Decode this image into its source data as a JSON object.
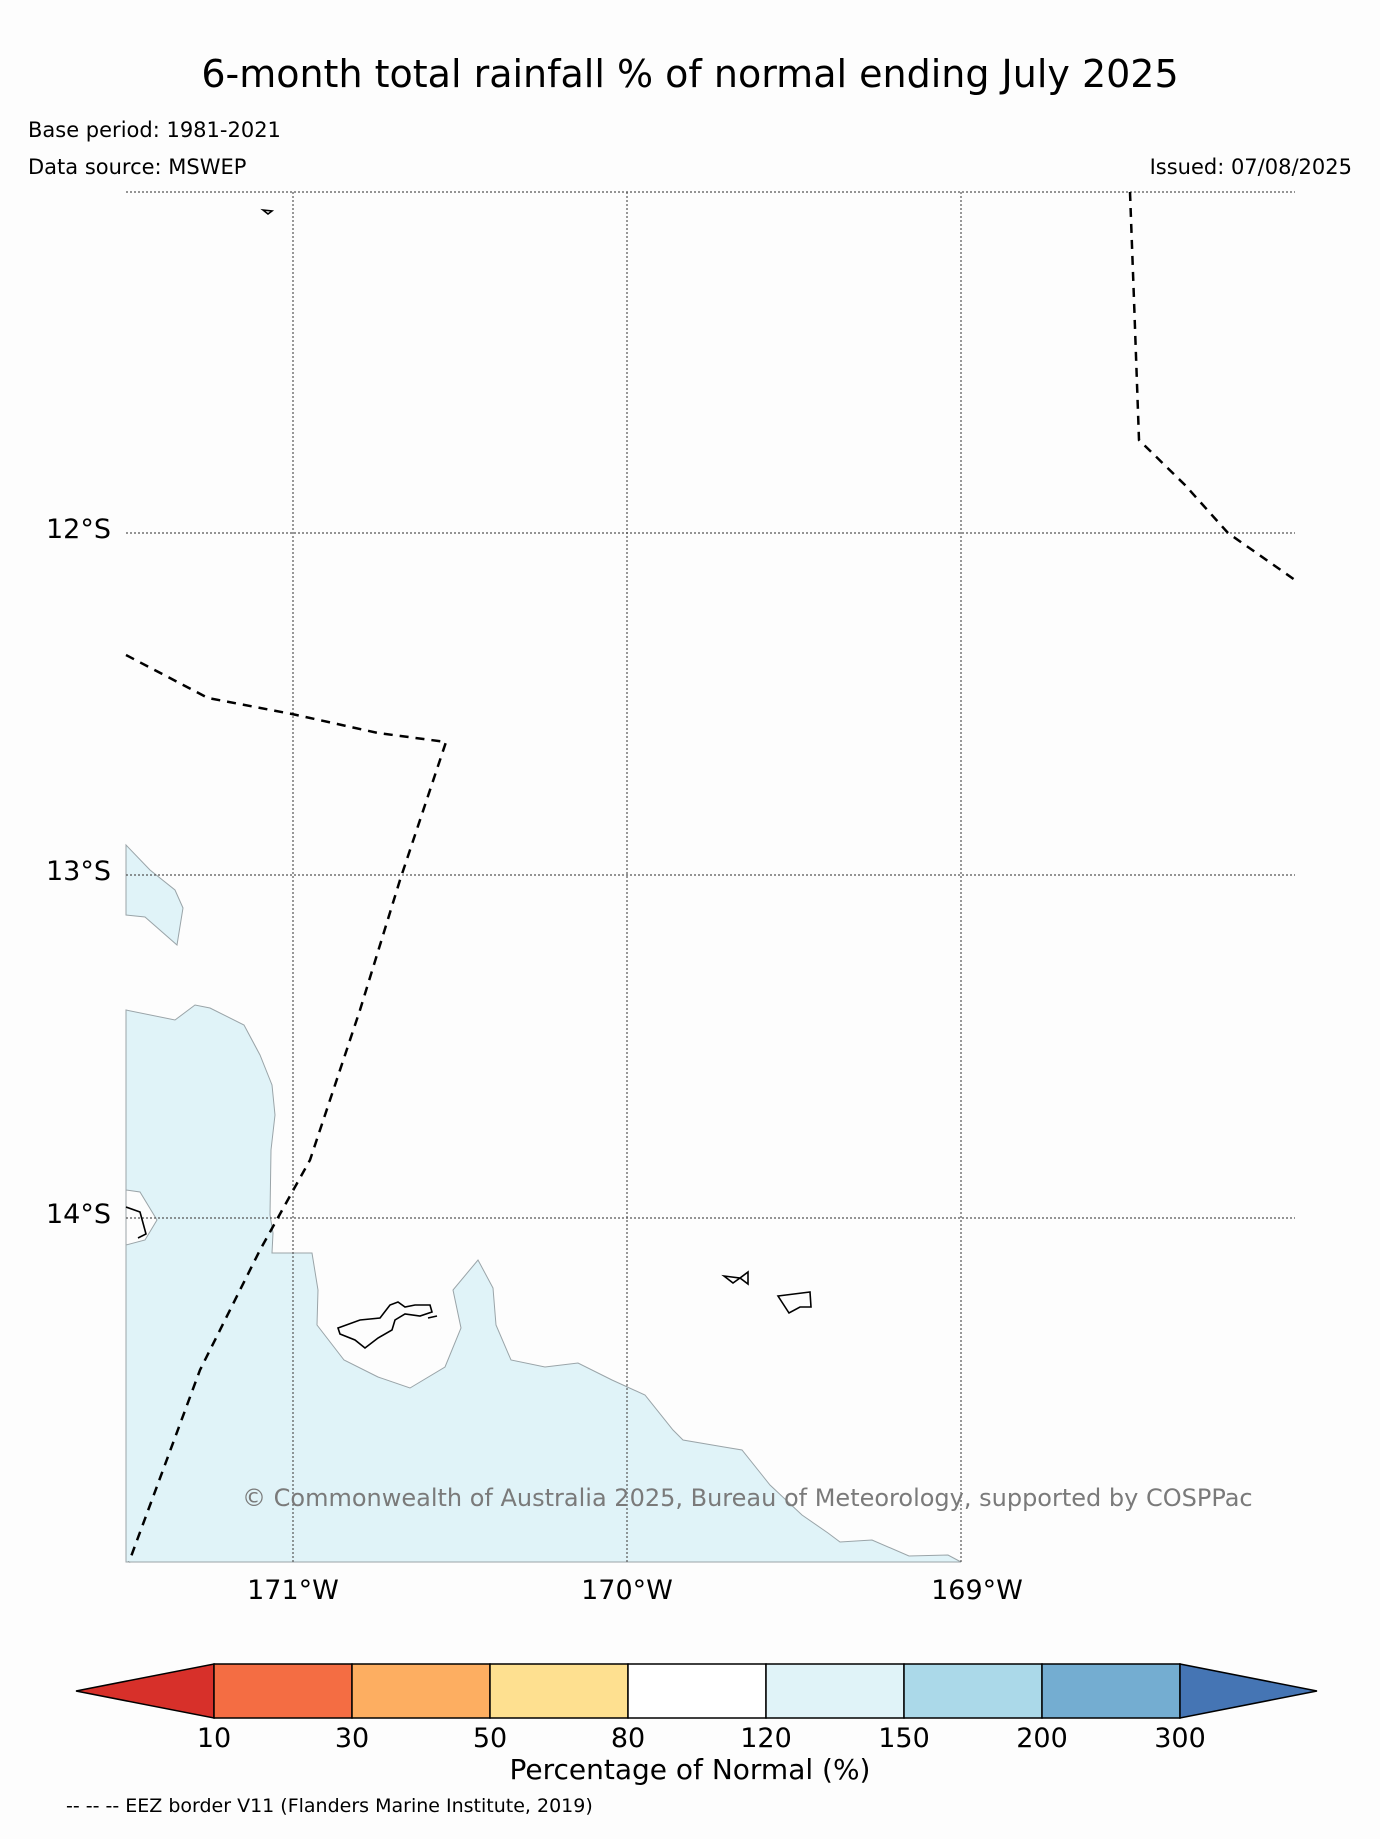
{
  "title": "6-month total rainfall % of normal ending July 2025",
  "base_period": "Base period: 1981-2021",
  "data_source": "Data source: MSWEP",
  "issued": "Issued: 07/08/2025",
  "lat_labels": [
    "12°S",
    "13°S",
    "14°S"
  ],
  "lon_labels": [
    "171°W",
    "170°W",
    "169°W"
  ],
  "copyright": "© Commonwealth of Australia 2025, Bureau of Meteorology, supported by COSPPac",
  "colorbar": {
    "ticks": [
      "10",
      "30",
      "50",
      "80",
      "120",
      "150",
      "200",
      "300"
    ],
    "label": "Percentage of Normal (%)",
    "colors": [
      "#d7302a",
      "#f46d43",
      "#fdae61",
      "#fee090",
      "#ffffff",
      "#e0f3f8",
      "#abd9e9",
      "#74add1",
      "#4575b4"
    ]
  },
  "eez_note": "-- -- -- EEZ border V11 (Flanders Marine Institute, 2019)",
  "fill_color": "#e0f3f8"
}
